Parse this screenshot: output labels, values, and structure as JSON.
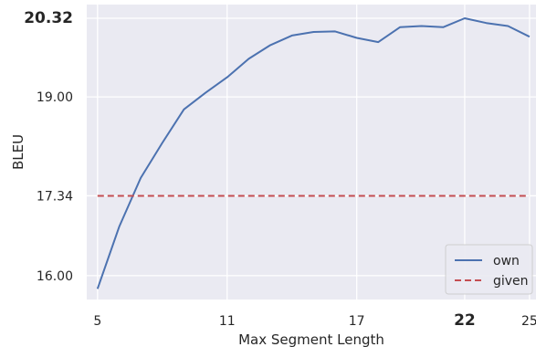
{
  "chart_data": {
    "type": "line",
    "xlabel": "Max Segment Length",
    "ylabel": "BLEU",
    "xlim": [
      4.5,
      25.3
    ],
    "ylim": [
      15.6,
      20.55
    ],
    "grid": true,
    "legend_position": "bottom-right",
    "x_ticks": [
      {
        "value": 5,
        "label": "5",
        "bold": false
      },
      {
        "value": 11,
        "label": "11",
        "bold": false
      },
      {
        "value": 17,
        "label": "17",
        "bold": false
      },
      {
        "value": 22,
        "label": "22",
        "bold": true
      },
      {
        "value": 25,
        "label": "25",
        "bold": false
      }
    ],
    "y_ticks": [
      {
        "value": 16.0,
        "label": "16.00",
        "bold": false
      },
      {
        "value": 17.34,
        "label": "17.34",
        "bold": false
      },
      {
        "value": 19.0,
        "label": "19.00",
        "bold": false
      },
      {
        "value": 20.32,
        "label": "20.32",
        "bold": true
      }
    ],
    "series": [
      {
        "name": "own",
        "color": "#4c72b0",
        "dash": "solid",
        "x": [
          5,
          6,
          7,
          8,
          9,
          10,
          11,
          12,
          13,
          14,
          15,
          16,
          17,
          18,
          19,
          20,
          21,
          22,
          23,
          24,
          25
        ],
        "y": [
          15.78,
          16.82,
          17.64,
          18.23,
          18.79,
          19.07,
          19.33,
          19.64,
          19.87,
          20.03,
          20.09,
          20.1,
          19.99,
          19.92,
          20.17,
          20.19,
          20.17,
          20.32,
          20.24,
          20.19,
          20.01
        ]
      },
      {
        "name": "given",
        "color": "#c44e52",
        "dash": "dashed",
        "x": [
          5,
          25
        ],
        "y": [
          17.34,
          17.34
        ]
      }
    ]
  }
}
